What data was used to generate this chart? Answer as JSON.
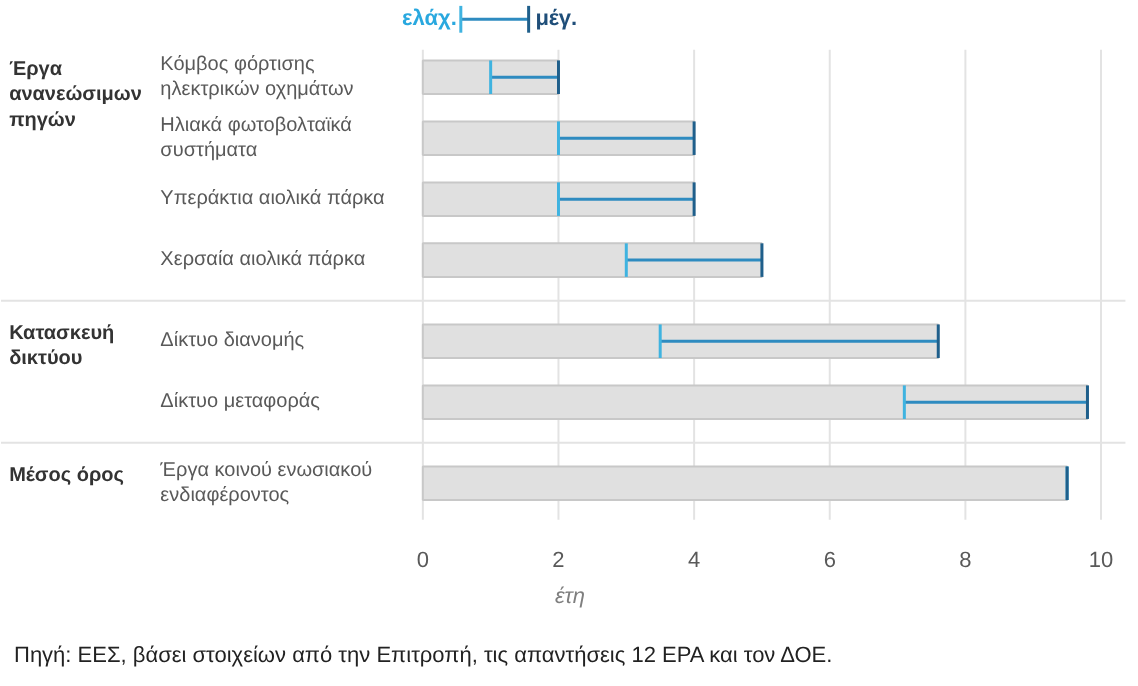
{
  "chart_data": {
    "type": "bar",
    "orientation": "horizontal",
    "xlabel": "έτη",
    "xlim": [
      0,
      10
    ],
    "xticks": [
      0,
      2,
      4,
      6,
      8,
      10
    ],
    "grid": "x",
    "categories": [
      "Κόμβος φόρτισης\nηλεκτρικών οχημάτων",
      "Ηλιακά φωτοβολταϊκά\nσυστήματα",
      "Υπεράκτια αιολικά πάρκα",
      "Χερσαία αιολικά πάρκα",
      "Δίκτυο διανομής",
      "Δίκτυο μεταφοράς",
      "Έργα κοινού ενωσιακού\nενδιαφέροντος"
    ],
    "series": [
      {
        "color": "#e0e0e0",
        "values": [
          2,
          4,
          4,
          5,
          7.6,
          9.8,
          9.5
        ],
        "errors": [
          [
            1,
            2
          ],
          [
            2,
            4
          ],
          [
            2,
            4
          ],
          [
            3,
            5
          ],
          [
            3.5,
            7.6
          ],
          [
            7.1,
            9.8
          ],
          [
            9.5,
            9.5
          ]
        ]
      }
    ],
    "annotations": [
      "ελάχ.",
      "μέγ.",
      "Έργα\nανανεώσιμων\nπηγών",
      "Κατασκευή\nδικτύου",
      "Μέσος όρος",
      "Πηγή: ΕΕΣ, βάσει στοιχείων από την Επιτροπή, τις απαντήσεις 12 ΕΡΑ και τον ΔΟΕ."
    ]
  }
}
